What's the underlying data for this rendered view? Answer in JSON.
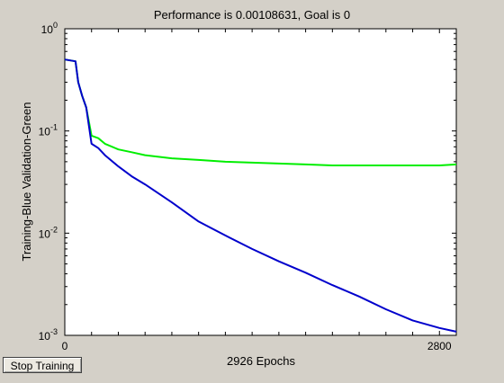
{
  "window": {
    "background": "#d4d0c8",
    "title": "Performance is 0.00108631, Goal is 0"
  },
  "controls": {
    "stop_label": "Stop Training"
  },
  "chart_data": {
    "type": "line",
    "title": "Performance is 0.00108631, Goal is 0",
    "xlabel": "2926 Epochs",
    "ylabel": "Training-Blue  Validation-Green",
    "yscale": "log",
    "xlim": [
      0,
      2926
    ],
    "ylim": [
      0.001,
      1
    ],
    "x_ticks": [
      {
        "value": 0,
        "label": "0"
      },
      {
        "value": 2800,
        "label": "2800"
      }
    ],
    "y_ticks": [
      {
        "value": 1,
        "base": "10",
        "exp": "0"
      },
      {
        "value": 0.1,
        "base": "10",
        "exp": "-1"
      },
      {
        "value": 0.01,
        "base": "10",
        "exp": "-2"
      },
      {
        "value": 0.001,
        "base": "10",
        "exp": "-3"
      }
    ],
    "grid": false,
    "series": [
      {
        "name": "Training",
        "color": "#0000cc",
        "x": [
          0,
          80,
          100,
          130,
          160,
          200,
          250,
          300,
          400,
          500,
          600,
          800,
          1000,
          1200,
          1400,
          1600,
          1800,
          2000,
          2200,
          2400,
          2600,
          2800,
          2926
        ],
        "y": [
          0.5,
          0.48,
          0.3,
          0.22,
          0.17,
          0.075,
          0.068,
          0.058,
          0.045,
          0.036,
          0.03,
          0.02,
          0.013,
          0.0095,
          0.007,
          0.0053,
          0.0041,
          0.0031,
          0.0024,
          0.0018,
          0.0014,
          0.00118,
          0.00108631
        ]
      },
      {
        "name": "Validation",
        "color": "#00ee00",
        "x": [
          0,
          80,
          100,
          130,
          160,
          200,
          250,
          300,
          400,
          500,
          600,
          800,
          1000,
          1200,
          1400,
          1600,
          1800,
          2000,
          2200,
          2400,
          2600,
          2800,
          2926
        ],
        "y": [
          0.5,
          0.48,
          0.3,
          0.22,
          0.17,
          0.09,
          0.085,
          0.075,
          0.066,
          0.062,
          0.058,
          0.054,
          0.052,
          0.05,
          0.049,
          0.048,
          0.047,
          0.046,
          0.046,
          0.046,
          0.046,
          0.046,
          0.047
        ]
      }
    ]
  }
}
